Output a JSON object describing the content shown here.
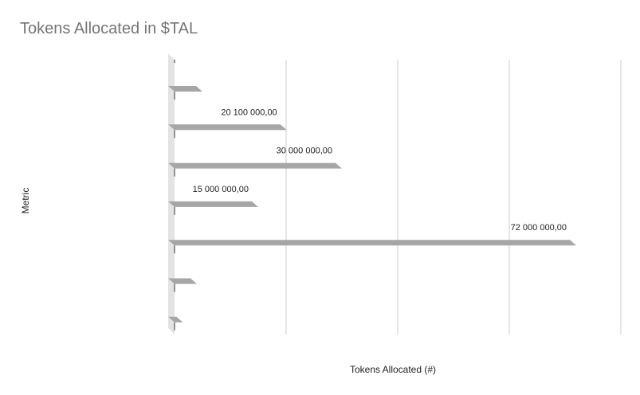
{
  "chart_data": {
    "type": "bar",
    "orientation": "horizontal",
    "title": "Tokens Allocated in $TAL",
    "xlabel": "Tokens Allocated (#)",
    "ylabel": "Metric",
    "categories": [
      "",
      "",
      "",
      "",
      "",
      "",
      ""
    ],
    "values": [
      5000000,
      20100000,
      30000000,
      15000000,
      72000000,
      4000000,
      1500000
    ],
    "data_labels": [
      "",
      "20 100 000,00",
      "30 000 000,00",
      "15 000 000,00",
      "72 000 000,00",
      "",
      ""
    ],
    "xlim": [
      0,
      80000000
    ],
    "x_gridlines": [
      20000000,
      40000000,
      60000000,
      80000000
    ],
    "grid": true,
    "legend": "none",
    "colors": {
      "bar": "#a6a6a6",
      "bar_side": "#d0d0d0",
      "bar_top": "#c4c4c4",
      "grid": "#cccccc",
      "axis": "#333333",
      "wall": "#e3e3e3",
      "label": "#222222",
      "title": "#757575"
    }
  }
}
